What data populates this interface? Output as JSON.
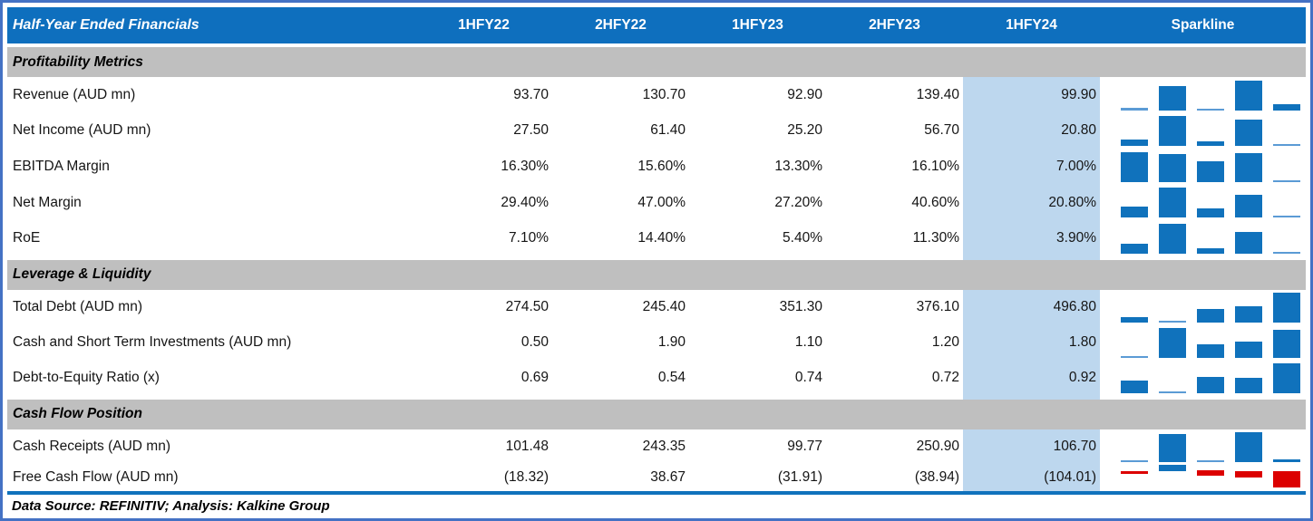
{
  "colors": {
    "header_blue": "#0E6FBE",
    "band_gray": "#BFBFBF",
    "highlight_blue": "#BDD7EE",
    "spark_blue": "#1072BC",
    "spark_min_blue": "#5B9BD5",
    "spark_negative_red": "#DC0000",
    "outer_border_blue": "#4472C4"
  },
  "footer": {
    "text": "Data Source: REFINITIV; Analysis: Kalkine Group"
  },
  "chart_data": {
    "type": "table",
    "title": "Half-Year Ended Financials",
    "columns": [
      "1HFY22",
      "2HFY22",
      "1HFY23",
      "2HFY23",
      "1HFY24"
    ],
    "sparkline_label": "Sparkline",
    "highlight_column": "1HFY24",
    "sparkline_type": "bar",
    "sections": [
      {
        "name": "Profitability Metrics",
        "rows": [
          {
            "label": "Revenue (AUD mn)",
            "values": [
              93.7,
              130.7,
              92.9,
              139.4,
              99.9
            ],
            "display": [
              "93.70",
              "130.70",
              "92.90",
              "139.40",
              "99.90"
            ]
          },
          {
            "label": "Net Income (AUD mn)",
            "values": [
              27.5,
              61.4,
              25.2,
              56.7,
              20.8
            ],
            "display": [
              "27.50",
              "61.40",
              "25.20",
              "56.70",
              "20.80"
            ]
          },
          {
            "label": "EBITDA Margin",
            "values": [
              16.3,
              15.6,
              13.3,
              16.1,
              7.0
            ],
            "display": [
              "16.30%",
              "15.60%",
              "13.30%",
              "16.10%",
              "7.00%"
            ]
          },
          {
            "label": "Net Margin",
            "values": [
              29.4,
              47.0,
              27.2,
              40.6,
              20.8
            ],
            "display": [
              "29.40%",
              "47.00%",
              "27.20%",
              "40.60%",
              "20.80%"
            ]
          },
          {
            "label": "RoE",
            "values": [
              7.1,
              14.4,
              5.4,
              11.3,
              3.9
            ],
            "display": [
              "7.10%",
              "14.40%",
              "5.40%",
              "11.30%",
              "3.90%"
            ]
          }
        ]
      },
      {
        "name": "Leverage & Liquidity",
        "rows": [
          {
            "label": "Total Debt (AUD mn)",
            "values": [
              274.5,
              245.4,
              351.3,
              376.1,
              496.8
            ],
            "display": [
              "274.50",
              "245.40",
              "351.30",
              "376.10",
              "496.80"
            ]
          },
          {
            "label": "Cash and Short Term Investments (AUD mn)",
            "values": [
              0.5,
              1.9,
              1.1,
              1.2,
              1.8
            ],
            "display": [
              "0.50",
              "1.90",
              "1.10",
              "1.20",
              "1.80"
            ]
          },
          {
            "label": "Debt-to-Equity Ratio (x)",
            "values": [
              0.69,
              0.54,
              0.74,
              0.72,
              0.92
            ],
            "display": [
              "0.69",
              "0.54",
              "0.74",
              "0.72",
              "0.92"
            ]
          }
        ]
      },
      {
        "name": "Cash Flow Position",
        "rows": [
          {
            "label": "Cash Receipts (AUD mn)",
            "values": [
              101.48,
              243.35,
              99.77,
              250.9,
              106.7
            ],
            "display": [
              "101.48",
              "243.35",
              "99.77",
              "250.90",
              "106.70"
            ]
          },
          {
            "label": "Free Cash Flow (AUD mn)",
            "values": [
              -18.32,
              38.67,
              -31.91,
              -38.94,
              -104.01
            ],
            "display": [
              "(18.32)",
              "38.67",
              "(31.91)",
              "(38.94)",
              "(104.01)"
            ]
          }
        ]
      }
    ]
  }
}
